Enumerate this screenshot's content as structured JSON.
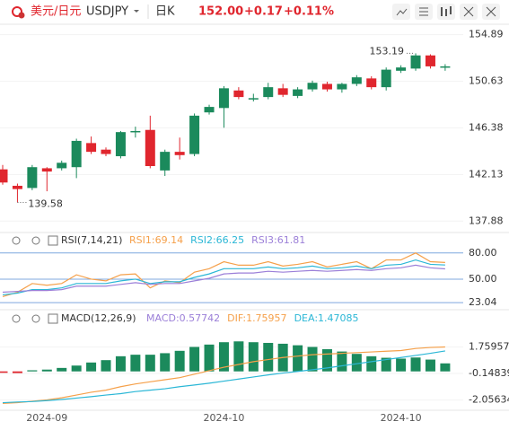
{
  "header": {
    "pair": "美元/日元",
    "symbol": "USDJPY",
    "period": "日K",
    "price": "152.00",
    "change": "+0.17",
    "change_pct": "+0.11%"
  },
  "chart_data": [
    {
      "type": "candlestick",
      "up_color": "#1b8a5c",
      "down_color": "#e0262e",
      "categories": [
        null,
        null,
        null,
        "2024-09",
        null,
        null,
        null,
        null,
        null,
        null,
        null,
        null,
        null,
        null,
        null,
        "2024-10",
        null,
        null,
        null,
        null,
        null,
        null,
        null,
        null,
        null,
        null,
        null,
        "2024-10",
        null,
        null,
        null
      ],
      "open": [
        142.6,
        141.1,
        140.9,
        142.7,
        142.7,
        142.8,
        145.0,
        144.4,
        143.8,
        146.0,
        146.2,
        142.5,
        144.2,
        144.0,
        147.8,
        148.2,
        149.8,
        149.0,
        149.2,
        150.0,
        149.3,
        149.9,
        150.4,
        149.9,
        150.4,
        150.9,
        150.1,
        151.6,
        151.8,
        153.0,
        151.9
      ],
      "high": [
        143.0,
        141.3,
        143.0,
        142.8,
        143.4,
        145.4,
        145.6,
        144.6,
        146.1,
        146.5,
        147.5,
        144.4,
        145.5,
        147.7,
        148.5,
        150.2,
        150.1,
        149.5,
        150.5,
        150.4,
        150.1,
        150.7,
        150.6,
        150.5,
        151.2,
        151.1,
        151.9,
        152.1,
        153.19,
        153.1,
        152.2
      ],
      "low": [
        141.2,
        139.58,
        140.7,
        140.6,
        142.5,
        141.8,
        144.0,
        143.8,
        143.6,
        145.5,
        142.7,
        142.0,
        143.5,
        143.8,
        147.6,
        146.4,
        149.0,
        148.8,
        149.0,
        149.2,
        149.1,
        149.7,
        149.7,
        149.6,
        150.2,
        149.9,
        149.8,
        151.4,
        151.6,
        151.8,
        151.6
      ],
      "close": [
        141.4,
        140.8,
        142.8,
        142.4,
        143.2,
        145.2,
        144.2,
        144.0,
        146.0,
        146.1,
        142.9,
        144.2,
        143.9,
        147.5,
        148.3,
        150.0,
        149.2,
        149.1,
        150.1,
        149.4,
        149.9,
        150.5,
        149.9,
        150.4,
        151.0,
        150.1,
        151.7,
        151.9,
        153.0,
        152.0,
        152.0
      ],
      "high_label": "153.19",
      "low_label": "139.58",
      "ylim": [
        137.0,
        155.6
      ],
      "yticks": [
        154.89,
        150.63,
        146.38,
        142.13,
        137.88
      ],
      "grid": true
    },
    {
      "type": "line",
      "title": "RSI(7,14,21)",
      "ylim": [
        16,
        87
      ],
      "yticks": [
        {
          "value": 80,
          "label": "80.00"
        },
        {
          "value": 50,
          "label": "50.00"
        },
        23.04
      ],
      "series": [
        {
          "name": "RSI1:69.14",
          "color": "#f5a04a",
          "values": [
            30,
            35,
            45,
            43,
            45,
            55,
            50,
            48,
            55,
            56,
            40,
            48,
            46,
            58,
            62,
            70,
            66,
            66,
            70,
            65,
            67,
            70,
            64,
            67,
            70,
            62,
            72,
            72,
            80,
            70,
            69.14
          ]
        },
        {
          "name": "RSI2:66.25",
          "color": "#2bb7d6",
          "values": [
            32,
            34,
            38,
            38,
            40,
            45,
            45,
            45,
            48,
            50,
            45,
            47,
            47,
            52,
            56,
            62,
            62,
            62,
            64,
            62,
            63,
            65,
            62,
            63,
            65,
            62,
            66,
            67,
            72,
            67,
            66.25
          ]
        },
        {
          "name": "RSI3:61.81",
          "color": "#9b7fd8",
          "values": [
            35,
            36,
            37,
            37,
            38,
            42,
            42,
            42,
            44,
            46,
            44,
            45,
            45,
            48,
            51,
            56,
            57,
            57,
            59,
            58,
            59,
            60,
            59,
            60,
            61,
            60,
            62,
            63,
            66,
            63,
            61.81
          ]
        }
      ]
    },
    {
      "type": "macd",
      "title": "MACD(12,26,9)",
      "ylim": [
        -2.73,
        3.34
      ],
      "yticks": [
        1.75957,
        -0.14839,
        -2.05634
      ],
      "up_color": "#1b8a5c",
      "down_color": "#e0262e",
      "histogram": {
        "name": "MACD:0.57742",
        "color": "#9b7fd8",
        "values": [
          -0.1,
          -0.12,
          0.08,
          0.13,
          0.25,
          0.42,
          0.64,
          0.81,
          1.09,
          1.2,
          1.2,
          1.31,
          1.48,
          1.76,
          1.93,
          2.1,
          2.16,
          2.1,
          2.05,
          1.99,
          1.88,
          1.76,
          1.6,
          1.43,
          1.26,
          1.09,
          0.98,
          0.92,
          1.0,
          0.85,
          0.57742
        ]
      },
      "series": [
        {
          "name": "DIF:1.75957",
          "color": "#f5a04a",
          "values": [
            -2.3,
            -2.25,
            -2.15,
            -2.05,
            -1.9,
            -1.7,
            -1.5,
            -1.35,
            -1.1,
            -0.9,
            -0.75,
            -0.6,
            -0.45,
            -0.2,
            0.05,
            0.3,
            0.5,
            0.7,
            0.85,
            1.0,
            1.1,
            1.2,
            1.25,
            1.3,
            1.35,
            1.4,
            1.45,
            1.5,
            1.65,
            1.72,
            1.75957
          ]
        },
        {
          "name": "DEA:1.47085",
          "color": "#2bb7d6",
          "values": [
            -2.25,
            -2.2,
            -2.17,
            -2.1,
            -2.02,
            -1.92,
            -1.82,
            -1.7,
            -1.6,
            -1.45,
            -1.35,
            -1.25,
            -1.1,
            -0.98,
            -0.85,
            -0.7,
            -0.55,
            -0.4,
            -0.25,
            -0.12,
            0,
            0.12,
            0.25,
            0.4,
            0.55,
            0.7,
            0.85,
            1.0,
            1.15,
            1.3,
            1.47085
          ]
        }
      ]
    }
  ]
}
